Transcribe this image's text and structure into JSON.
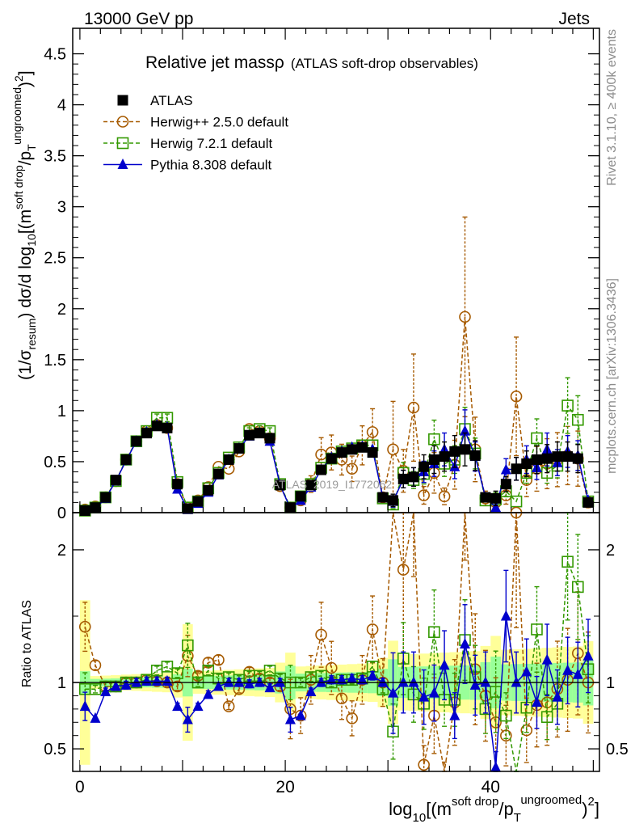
{
  "header": {
    "left": "13000 GeV pp",
    "right": "Jets"
  },
  "side_labels": {
    "rivet": "Rivet 3.1.10, ≥ 400k events",
    "mcplots": "mcplots.cern.ch [arXiv:1306.3436]"
  },
  "chart_data": {
    "type": "line",
    "title": "Relative jet massρ",
    "subtitle": "(ATLAS soft-drop observables)",
    "watermark": "ATLAS_2019_I1772062",
    "xlabel": "log10[(m^{soft drop}/p_T^{ungroomed})^2]",
    "xlabel_parts": {
      "base": "log",
      "sub": "10",
      "open": "[(m",
      "sup1": "soft drop",
      "mid": "/p",
      "sub2": "T",
      "sup2": "ungroomed",
      "close": ")",
      "sup3": "2",
      "end": "]"
    },
    "ylabel_parts": {
      "a": "(1/σ",
      "a_sub": "resum",
      "b": ") dσ/d log",
      "b_sub": "10",
      "c": "[(m",
      "c_sup": "soft drop",
      "d": "/p",
      "d_sub": "T",
      "d_sup": "ungroomed",
      "e": ")",
      "e_sup": "2",
      "f": "]"
    },
    "ratio_ylabel": "Ratio to ATLAS",
    "xlim": [
      -0.7,
      50.6
    ],
    "ylim": [
      0,
      4.75
    ],
    "ratio_ylim": [
      0.33,
      2.28
    ],
    "x_ticks": [
      0,
      20,
      40
    ],
    "y_ticks": [
      0,
      0.5,
      1,
      1.5,
      2,
      2.5,
      3,
      3.5,
      4,
      4.5
    ],
    "y_tick_labels": [
      "0",
      "0.5",
      "1",
      "1.5",
      "2",
      "2.5",
      "3",
      "3.5",
      "4",
      "4.5"
    ],
    "ratio_ticks": [
      0.5,
      1,
      2
    ],
    "ratio_tick_labels": [
      "0.5",
      "1",
      "2"
    ],
    "x": [
      0.5,
      1.5,
      2.5,
      3.5,
      4.5,
      5.5,
      6.5,
      7.5,
      8.5,
      9.5,
      10.5,
      11.5,
      12.5,
      13.5,
      14.5,
      15.5,
      16.5,
      17.5,
      18.5,
      19.5,
      20.5,
      21.5,
      22.5,
      23.5,
      24.5,
      25.5,
      26.5,
      27.5,
      28.5,
      29.5,
      30.5,
      31.5,
      32.5,
      33.5,
      34.5,
      35.5,
      36.5,
      37.5,
      38.5,
      39.5,
      40.5,
      41.5,
      42.5,
      43.5,
      44.5,
      45.5,
      46.5,
      47.5,
      48.5,
      49.5
    ],
    "series": [
      {
        "name": "ATLAS",
        "color": "#000000",
        "marker": "square-filled",
        "dash": "none",
        "values": [
          0.02,
          0.05,
          0.15,
          0.32,
          0.52,
          0.7,
          0.78,
          0.85,
          0.83,
          0.28,
          0.04,
          0.11,
          0.22,
          0.38,
          0.52,
          0.63,
          0.76,
          0.78,
          0.73,
          0.27,
          0.05,
          0.16,
          0.27,
          0.42,
          0.53,
          0.59,
          0.62,
          0.64,
          0.59,
          0.15,
          0.12,
          0.33,
          0.35,
          0.45,
          0.52,
          0.55,
          0.6,
          0.62,
          0.56,
          0.15,
          0.14,
          0.28,
          0.43,
          0.48,
          0.52,
          0.53,
          0.55,
          0.55,
          0.53,
          0.1
        ]
      },
      {
        "name": "Herwig++ 2.5.0 default",
        "color": "#a65a00",
        "marker": "circle-open",
        "dash": "dashed",
        "values": [
          0.03,
          0.06,
          0.15,
          0.31,
          0.52,
          0.7,
          0.8,
          0.86,
          0.83,
          0.28,
          0.05,
          0.12,
          0.25,
          0.45,
          0.43,
          0.6,
          0.82,
          0.8,
          0.73,
          0.26,
          0.05,
          0.12,
          0.28,
          0.57,
          0.59,
          0.52,
          0.43,
          0.66,
          0.79,
          0.15,
          0.62,
          0.41,
          1.03,
          0.17,
          0.39,
          0.16,
          0.47,
          1.92,
          0.62,
          0.14,
          0.1,
          0.17,
          1.14,
          0.32,
          0.43,
          0.48,
          0.52,
          0.56,
          0.53,
          0.1
        ]
      },
      {
        "name": "Herwig 7.2.1 default",
        "color": "#339900",
        "marker": "square-open",
        "dash": "dashed",
        "values": [
          0.02,
          0.05,
          0.15,
          0.31,
          0.52,
          0.7,
          0.8,
          0.93,
          0.93,
          0.3,
          0.05,
          0.11,
          0.24,
          0.39,
          0.54,
          0.64,
          0.8,
          0.82,
          0.8,
          0.28,
          0.05,
          0.16,
          0.28,
          0.44,
          0.53,
          0.6,
          0.63,
          0.66,
          0.66,
          0.14,
          0.08,
          0.39,
          0.32,
          0.38,
          0.72,
          0.48,
          0.52,
          0.82,
          0.58,
          0.12,
          0.13,
          0.21,
          0.11,
          0.39,
          0.73,
          0.39,
          0.46,
          1.05,
          0.91,
          0.11
        ]
      },
      {
        "name": "Pythia 8.308 default",
        "color": "#0000cc",
        "marker": "triangle-filled",
        "dash": "solid",
        "values": [
          0.02,
          0.04,
          0.14,
          0.31,
          0.51,
          0.7,
          0.79,
          0.86,
          0.84,
          0.23,
          0.03,
          0.09,
          0.2,
          0.37,
          0.52,
          0.63,
          0.75,
          0.78,
          0.7,
          0.27,
          0.04,
          0.12,
          0.25,
          0.42,
          0.54,
          0.6,
          0.64,
          0.65,
          0.62,
          0.15,
          0.11,
          0.33,
          0.35,
          0.4,
          0.48,
          0.62,
          0.45,
          0.8,
          0.55,
          0.15,
          0.05,
          0.42,
          0.43,
          0.52,
          0.44,
          0.62,
          0.49,
          0.6,
          0.56,
          0.12
        ]
      }
    ],
    "ratio_series": [
      {
        "name": "Herwig++ 2.5.0 default",
        "values": [
          1.42,
          1.13,
          0.97,
          0.97,
          1.0,
          1.0,
          1.02,
          1.01,
          1.0,
          0.97,
          1.2,
          1.05,
          1.15,
          1.17,
          0.82,
          0.95,
          1.08,
          1.03,
          1.0,
          0.97,
          0.8,
          0.75,
          1.02,
          1.36,
          1.11,
          0.88,
          0.73,
          1.02,
          1.4,
          1.0,
          5.0,
          1.85,
          2.9,
          0.38,
          0.75,
          0.29,
          0.85,
          3.1,
          1.1,
          0.9,
          0.7,
          0.6,
          2.28,
          0.64,
          0.83,
          0.85,
          0.95,
          1.02,
          1.22,
          1.0
        ]
      },
      {
        "name": "Herwig 7.2.1 default",
        "values": [
          0.95,
          0.95,
          0.97,
          0.97,
          1.0,
          1.0,
          1.02,
          1.09,
          1.12,
          1.07,
          1.28,
          1.0,
          1.09,
          1.03,
          1.04,
          1.02,
          1.05,
          1.05,
          1.09,
          1.03,
          1.0,
          1.0,
          1.04,
          1.05,
          1.0,
          1.02,
          1.02,
          1.03,
          1.12,
          0.95,
          0.63,
          1.18,
          0.91,
          0.84,
          1.38,
          0.87,
          0.87,
          1.32,
          1.04,
          0.8,
          0.93,
          0.75,
          0.26,
          0.81,
          1.4,
          0.74,
          0.84,
          1.91,
          1.72,
          1.1
        ]
      },
      {
        "name": "Pythia 8.308 default",
        "values": [
          0.82,
          0.73,
          0.93,
          0.97,
          0.98,
          1.0,
          1.01,
          1.01,
          1.01,
          0.82,
          0.72,
          0.82,
          0.91,
          0.97,
          1.0,
          1.0,
          0.99,
          1.0,
          0.96,
          1.0,
          0.72,
          0.75,
          0.93,
          1.0,
          1.02,
          1.02,
          1.03,
          1.02,
          1.05,
          1.0,
          0.92,
          1.0,
          1.0,
          0.89,
          0.92,
          1.13,
          0.75,
          1.29,
          0.98,
          1.0,
          0.36,
          1.5,
          1.0,
          1.08,
          0.85,
          1.17,
          0.89,
          1.09,
          1.06,
          1.2
        ]
      }
    ]
  }
}
